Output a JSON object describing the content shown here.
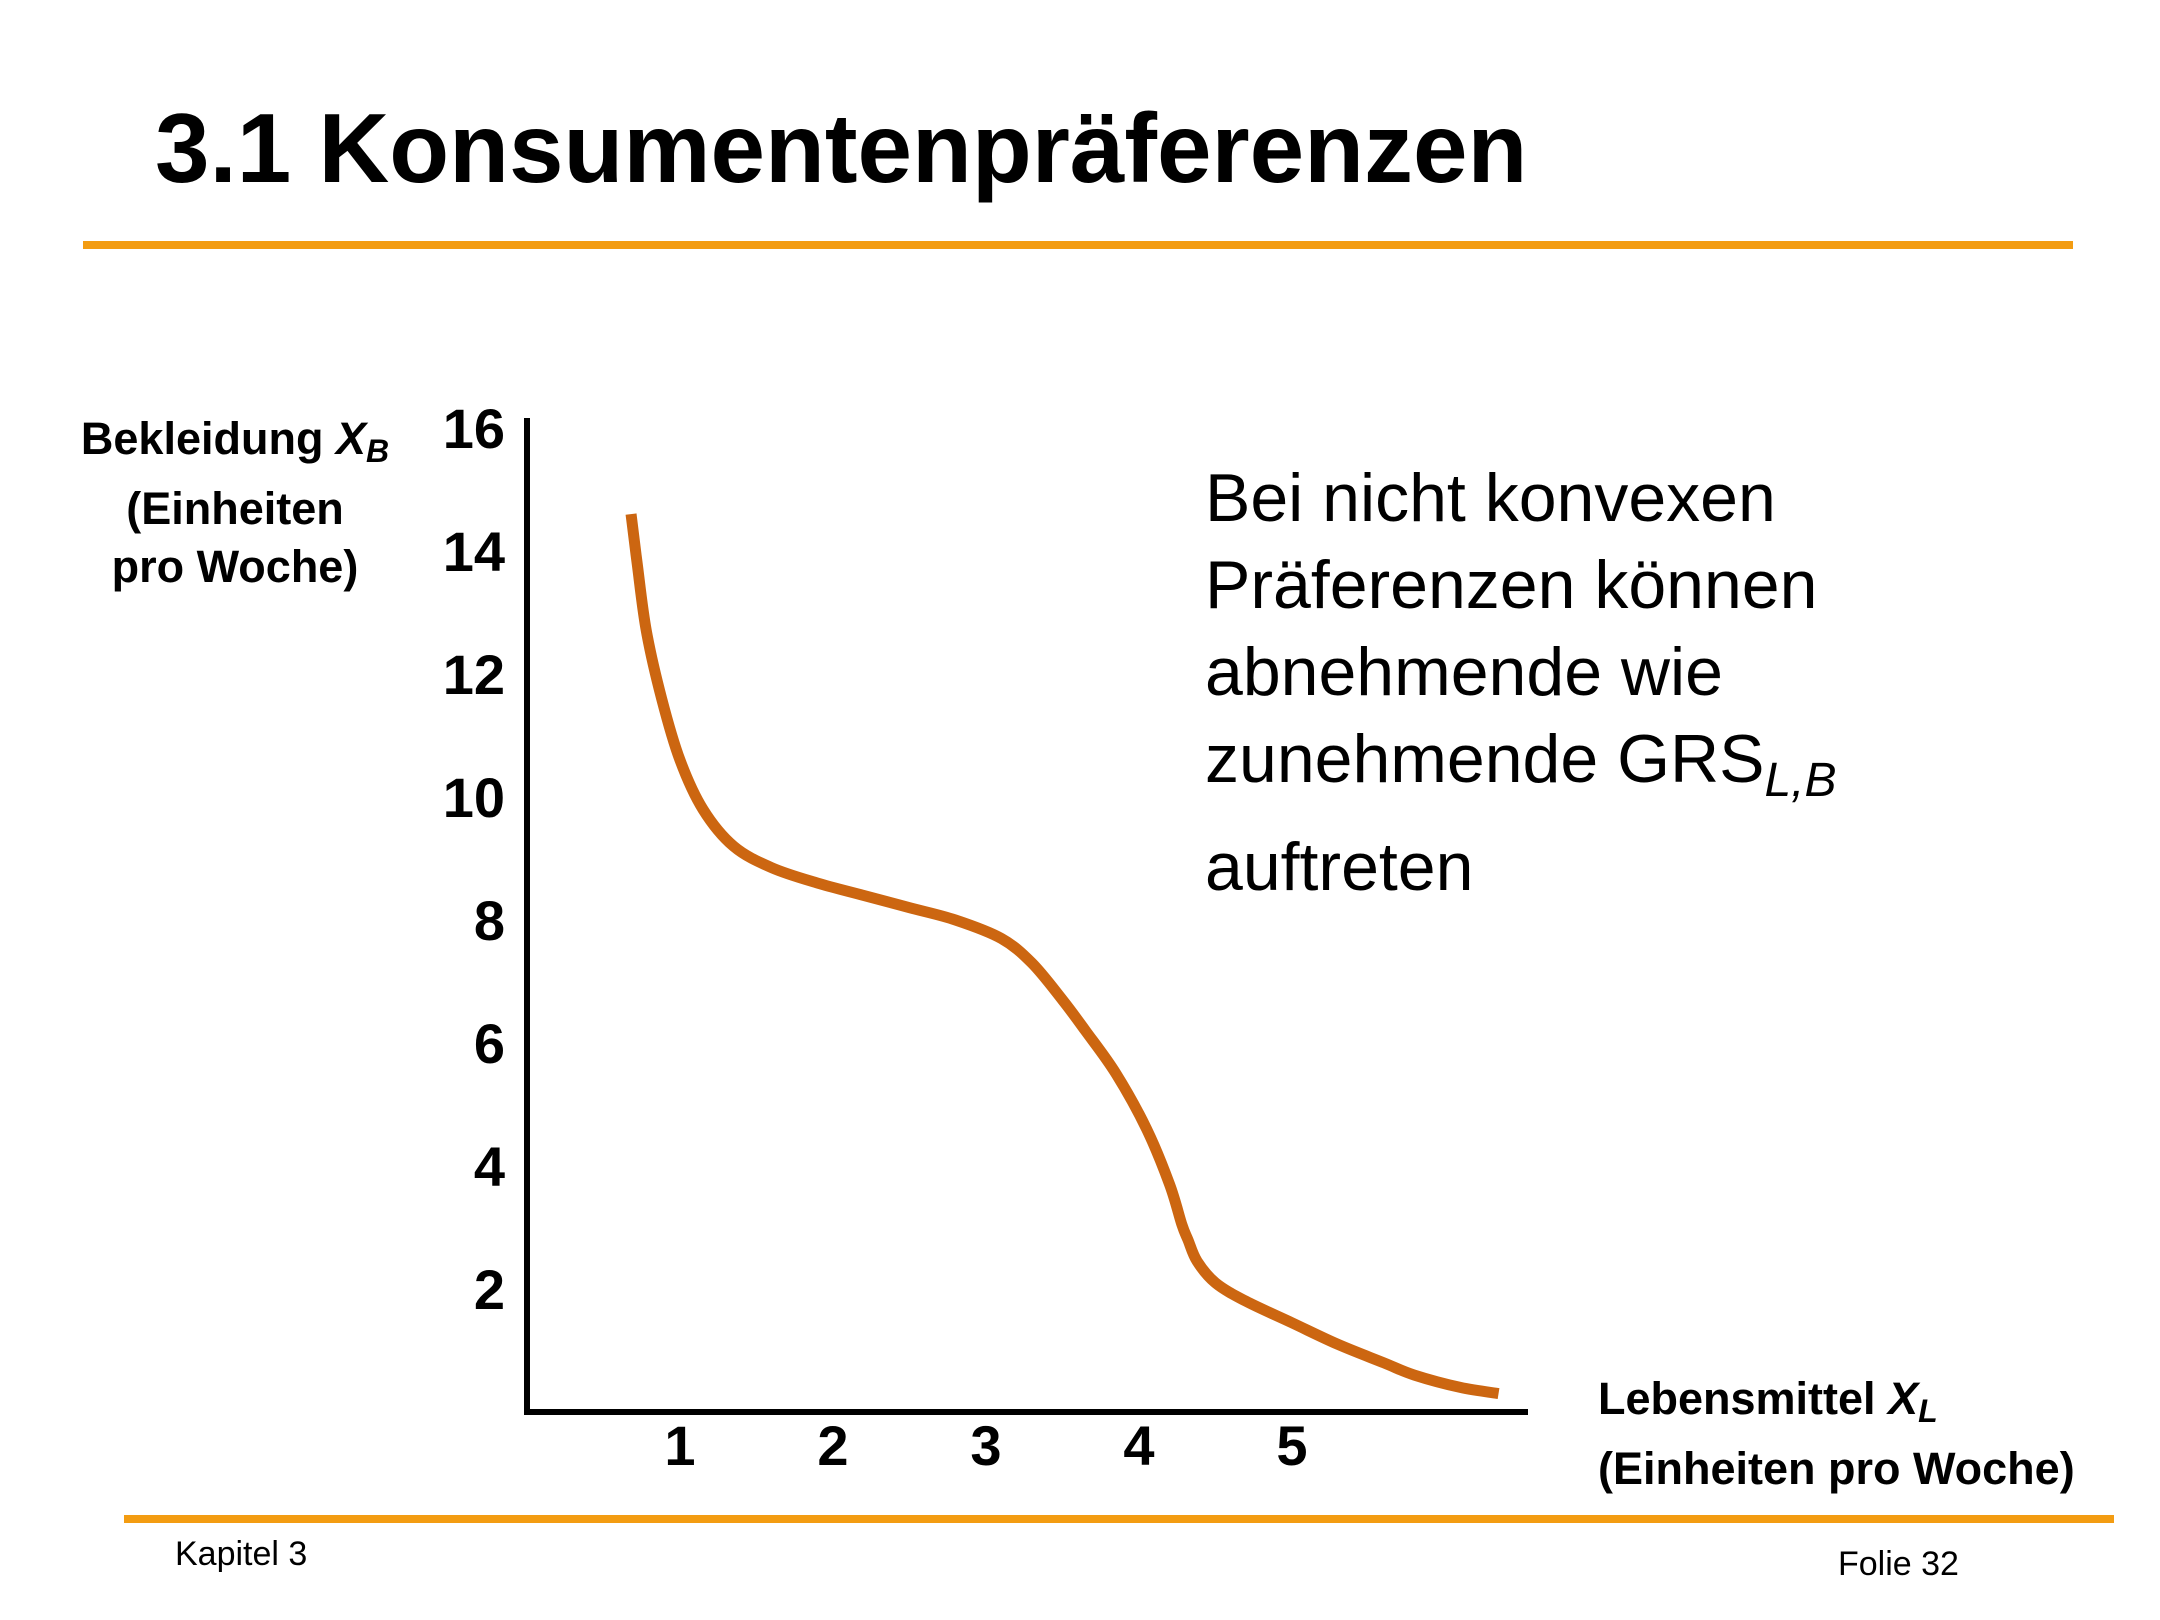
{
  "slide": {
    "title": "3.1 Konsumentenpräferenzen",
    "footer_left": "Kapitel 3",
    "footer_right": "Folie 32",
    "accent_color": "#f39c12"
  },
  "annotation": {
    "lines": [
      "Bei nicht konvexen",
      "Präferenzen können",
      "abnehmende wie"
    ],
    "line4_main": "zunehmende GRS",
    "line4_sub": "L,B",
    "line5": "auftreten"
  },
  "chart_data": {
    "type": "line",
    "ylabel_main": "Bekleidung ",
    "ylabel_var": "X",
    "ylabel_sub": "B",
    "ylabel_line2": "(Einheiten",
    "ylabel_line3": "pro Woche)",
    "xlabel_main": "Lebensmittel ",
    "xlabel_var": "X",
    "xlabel_sub": "L",
    "xlabel_line2": "(Einheiten pro Woche)",
    "x_ticks": [
      1,
      2,
      3,
      4,
      5
    ],
    "y_ticks": [
      2,
      4,
      6,
      8,
      10,
      12,
      14,
      16
    ],
    "xlim": [
      0,
      6.6
    ],
    "ylim": [
      0,
      16
    ],
    "grid": false,
    "curve_color": "#cc6611",
    "series": [
      {
        "x": [
          0.68,
          0.72,
          0.78,
          0.88,
          1.0,
          1.15,
          1.35,
          1.6,
          1.9,
          2.2,
          2.5,
          2.8,
          3.1,
          3.3,
          3.5,
          3.65,
          3.85,
          4.05,
          4.2,
          4.28,
          4.32,
          4.38,
          4.5,
          4.7,
          5.0,
          5.3,
          5.6,
          5.8,
          6.1,
          6.35
        ],
        "y": [
          14.6,
          13.8,
          12.7,
          11.6,
          10.6,
          9.8,
          9.2,
          8.85,
          8.6,
          8.4,
          8.2,
          8.0,
          7.7,
          7.3,
          6.7,
          6.2,
          5.5,
          4.6,
          3.7,
          3.05,
          2.8,
          2.45,
          2.1,
          1.8,
          1.45,
          1.1,
          0.8,
          0.6,
          0.4,
          0.3
        ]
      }
    ]
  }
}
